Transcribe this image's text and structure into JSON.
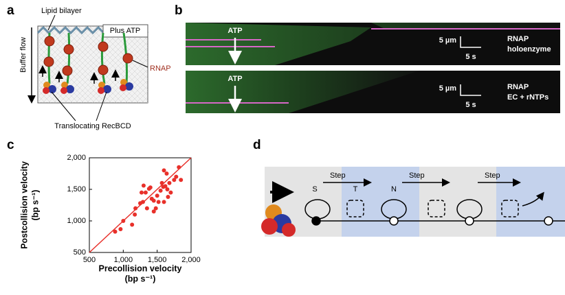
{
  "panel_labels": [
    "a",
    "b",
    "c",
    "d"
  ],
  "panel_a": {
    "lipid_label": "Lipid bilayer",
    "plus_atp": "Plus ATP",
    "flow_label": "Buffer flow",
    "rnap_label": "RNAP",
    "recbcd_label": "Translocating RecBCD"
  },
  "panel_b": {
    "kymographs": [
      {
        "atp": "ATP",
        "scale_length": "5 µm",
        "scale_time": "5 s",
        "label_lines": [
          "RNAP",
          "holoenzyme"
        ]
      },
      {
        "atp": "ATP",
        "scale_length": "5 µm",
        "scale_time": "5 s",
        "label_lines": [
          "RNAP",
          "EC + rNTPs"
        ]
      }
    ]
  },
  "chart_data": {
    "type": "scatter",
    "color": "#e8302a",
    "xlabel": [
      "Precollision velocity",
      "(bp s⁻¹)"
    ],
    "ylabel": [
      "Postcollision velocity",
      "(bp s⁻¹)"
    ],
    "x": [
      880,
      960,
      1000,
      1130,
      1170,
      1180,
      1250,
      1270,
      1290,
      1300,
      1330,
      1350,
      1380,
      1400,
      1420,
      1450,
      1450,
      1480,
      1500,
      1520,
      1550,
      1570,
      1590,
      1600,
      1600,
      1620,
      1640,
      1650,
      1660,
      1680,
      1700,
      1750,
      1780,
      1820,
      1850
    ],
    "values": [
      830,
      870,
      1000,
      940,
      1100,
      1200,
      1280,
      1450,
      1300,
      1560,
      1450,
      1200,
      1510,
      1530,
      1350,
      1150,
      1320,
      1200,
      1400,
      1300,
      1480,
      1600,
      1540,
      1800,
      1300,
      1550,
      1750,
      1500,
      1380,
      1600,
      1450,
      1650,
      1700,
      1850,
      1650
    ],
    "xlim": [
      500,
      2000
    ],
    "ylim": [
      500,
      2000
    ],
    "xticks": [
      500,
      {
        "value": 1000,
        "label": "1,000"
      },
      {
        "value": 1500,
        "label": "1,500"
      },
      {
        "value": 2000,
        "label": "2,000"
      }
    ],
    "yticks": [
      500,
      {
        "value": 1000,
        "label": "1,000"
      },
      {
        "value": 1500,
        "label": "1,500"
      },
      {
        "value": 2000,
        "label": "2,000"
      }
    ]
  },
  "panel_d": {
    "steps": [
      "Step",
      "Step",
      "Step"
    ],
    "states": [
      "S",
      "T",
      "N"
    ]
  }
}
